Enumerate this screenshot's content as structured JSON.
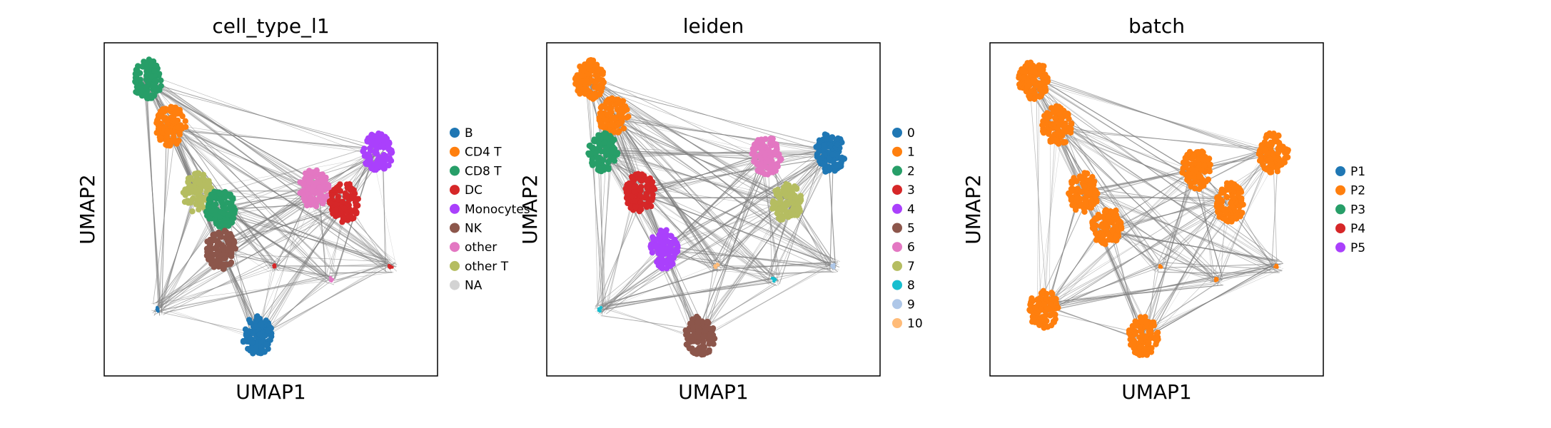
{
  "chart_data": [
    {
      "type": "scatter",
      "title": "cell_type_l1",
      "xlabel": "UMAP1",
      "ylabel": "UMAP2",
      "grid": false,
      "legend_position": "right",
      "legend": [
        {
          "label": "B",
          "color": "#1f77b4"
        },
        {
          "label": "CD4 T",
          "color": "#ff7f0e"
        },
        {
          "label": "CD8 T",
          "color": "#279e68"
        },
        {
          "label": "DC",
          "color": "#d62728"
        },
        {
          "label": "Monocytes",
          "color": "#aa40fc"
        },
        {
          "label": "NK",
          "color": "#8c564b"
        },
        {
          "label": "other",
          "color": "#e377c2"
        },
        {
          "label": "other T",
          "color": "#b5bd61"
        },
        {
          "label": "NA",
          "color": "#d3d3d3"
        }
      ],
      "clusters": [
        {
          "label": "CD8 T",
          "x": 0.13,
          "y": 0.89
        },
        {
          "label": "CD4 T",
          "x": 0.2,
          "y": 0.75
        },
        {
          "label": "other T",
          "x": 0.28,
          "y": 0.55
        },
        {
          "label": "CD8 T",
          "x": 0.35,
          "y": 0.5
        },
        {
          "label": "NK",
          "x": 0.35,
          "y": 0.38
        },
        {
          "label": "Monocytes",
          "x": 0.82,
          "y": 0.67
        },
        {
          "label": "other",
          "x": 0.63,
          "y": 0.56
        },
        {
          "label": "DC",
          "x": 0.72,
          "y": 0.52
        },
        {
          "label": "B",
          "x": 0.46,
          "y": 0.12
        },
        {
          "label": "B",
          "x": 0.16,
          "y": 0.2
        },
        {
          "label": "DC",
          "x": 0.86,
          "y": 0.33
        },
        {
          "label": "other",
          "x": 0.68,
          "y": 0.29
        },
        {
          "label": "DC",
          "x": 0.51,
          "y": 0.33
        }
      ]
    },
    {
      "type": "scatter",
      "title": "leiden",
      "xlabel": "UMAP1",
      "ylabel": "UMAP2",
      "grid": false,
      "legend_position": "right",
      "legend": [
        {
          "label": "0",
          "color": "#1f77b4"
        },
        {
          "label": "1",
          "color": "#ff7f0e"
        },
        {
          "label": "2",
          "color": "#279e68"
        },
        {
          "label": "3",
          "color": "#d62728"
        },
        {
          "label": "4",
          "color": "#aa40fc"
        },
        {
          "label": "5",
          "color": "#8c564b"
        },
        {
          "label": "6",
          "color": "#e377c2"
        },
        {
          "label": "7",
          "color": "#b5bd61"
        },
        {
          "label": "8",
          "color": "#17becf"
        },
        {
          "label": "9",
          "color": "#aec7e8"
        },
        {
          "label": "10",
          "color": "#ffbb78"
        }
      ],
      "clusters": [
        {
          "label": "1",
          "x": 0.13,
          "y": 0.89
        },
        {
          "label": "1",
          "x": 0.2,
          "y": 0.78
        },
        {
          "label": "2",
          "x": 0.17,
          "y": 0.67
        },
        {
          "label": "3",
          "x": 0.28,
          "y": 0.55
        },
        {
          "label": "4",
          "x": 0.35,
          "y": 0.38
        },
        {
          "label": "0",
          "x": 0.85,
          "y": 0.67
        },
        {
          "label": "6",
          "x": 0.66,
          "y": 0.66
        },
        {
          "label": "7",
          "x": 0.72,
          "y": 0.52
        },
        {
          "label": "5",
          "x": 0.46,
          "y": 0.12
        },
        {
          "label": "8",
          "x": 0.16,
          "y": 0.2
        },
        {
          "label": "8",
          "x": 0.68,
          "y": 0.29
        },
        {
          "label": "9",
          "x": 0.86,
          "y": 0.33
        },
        {
          "label": "10",
          "x": 0.51,
          "y": 0.33
        }
      ]
    },
    {
      "type": "scatter",
      "title": "batch",
      "xlabel": "UMAP1",
      "ylabel": "UMAP2",
      "grid": false,
      "legend_position": "right",
      "legend": [
        {
          "label": "P1",
          "color": "#1f77b4"
        },
        {
          "label": "P2",
          "color": "#ff7f0e"
        },
        {
          "label": "P3",
          "color": "#279e68"
        },
        {
          "label": "P4",
          "color": "#d62728"
        },
        {
          "label": "P5",
          "color": "#aa40fc"
        }
      ],
      "clusters": [
        {
          "label": "P2",
          "x": 0.13,
          "y": 0.89
        },
        {
          "label": "P2",
          "x": 0.2,
          "y": 0.75
        },
        {
          "label": "P2",
          "x": 0.28,
          "y": 0.55
        },
        {
          "label": "P2",
          "x": 0.35,
          "y": 0.45
        },
        {
          "label": "P2",
          "x": 0.85,
          "y": 0.67
        },
        {
          "label": "P2",
          "x": 0.62,
          "y": 0.62
        },
        {
          "label": "P2",
          "x": 0.72,
          "y": 0.52
        },
        {
          "label": "P2",
          "x": 0.46,
          "y": 0.12
        },
        {
          "label": "P2",
          "x": 0.16,
          "y": 0.2
        },
        {
          "label": "P2",
          "x": 0.68,
          "y": 0.29
        },
        {
          "label": "P2",
          "x": 0.86,
          "y": 0.33
        },
        {
          "label": "P2",
          "x": 0.51,
          "y": 0.33
        }
      ]
    }
  ]
}
